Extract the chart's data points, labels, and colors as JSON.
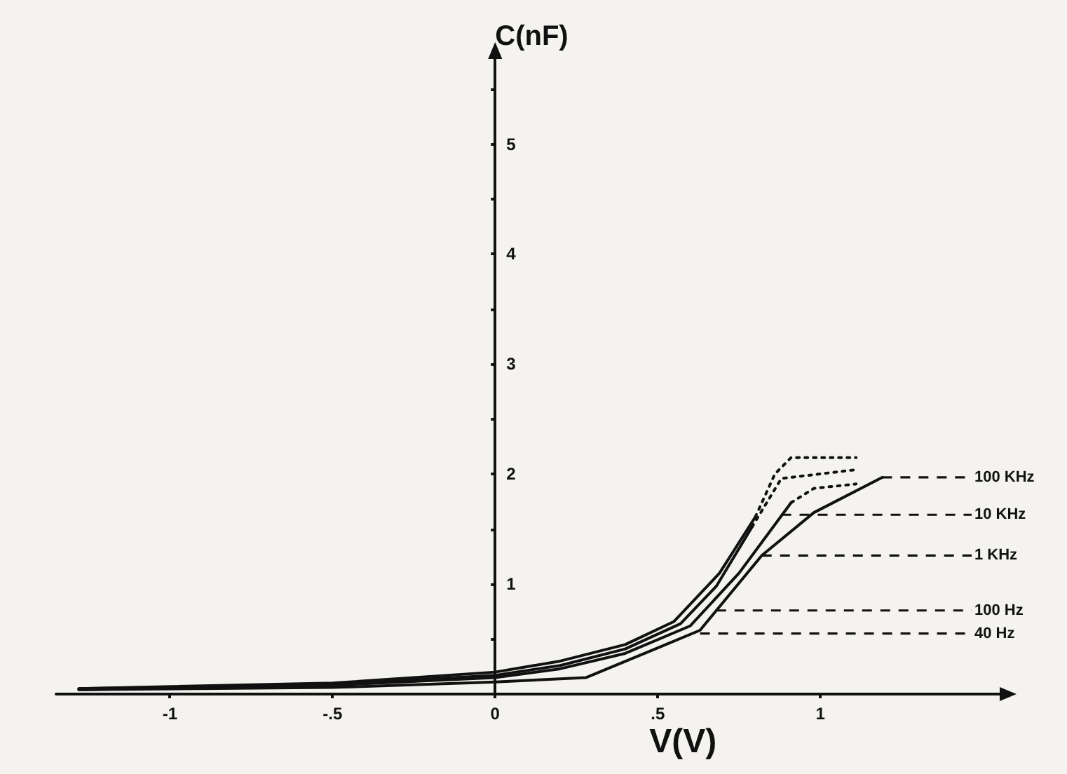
{
  "chart_data": {
    "type": "line",
    "xlabel": "V(V)",
    "ylabel": "C(nF)",
    "xlim": [
      -1.35,
      1.56
    ],
    "ylim": [
      0,
      5.8
    ],
    "xticks": [
      {
        "value": -1,
        "label": "-1"
      },
      {
        "value": -0.5,
        "label": "-.5"
      },
      0,
      {
        "value": 0.5,
        "label": ".5"
      },
      1
    ],
    "yticks": [
      {
        "value": 0.5,
        "label": null
      },
      1,
      {
        "value": 1.5,
        "label": null
      },
      2,
      {
        "value": 2.5,
        "label": null
      },
      3,
      {
        "value": 3.5,
        "label": null
      },
      4,
      {
        "value": 4.5,
        "label": null
      },
      5,
      {
        "value": 5.5,
        "label": null
      }
    ],
    "grid": false,
    "marker": "none",
    "series": [
      {
        "color": "#111111",
        "line_style": "solid",
        "x": [
          -1.28,
          -0.5,
          0,
          0.2,
          0.4,
          0.55,
          0.69,
          0.8
        ],
        "values": [
          0.05,
          0.1,
          0.2,
          0.3,
          0.45,
          0.66,
          1.1,
          1.61
        ]
      },
      {
        "color": "#111111",
        "line_style": "dotted",
        "x": [
          0.8,
          0.86,
          0.91,
          1.11
        ],
        "values": [
          1.61,
          2.0,
          2.15,
          2.15
        ]
      },
      {
        "color": "#111111",
        "line_style": "solid",
        "x": [
          -1.28,
          -0.5,
          0,
          0.2,
          0.4,
          0.57,
          0.68,
          0.79
        ],
        "values": [
          0.05,
          0.09,
          0.17,
          0.26,
          0.41,
          0.64,
          0.98,
          1.52
        ]
      },
      {
        "color": "#111111",
        "line_style": "dotted",
        "x": [
          0.79,
          0.88,
          1.11
        ],
        "values": [
          1.52,
          1.96,
          2.04
        ]
      },
      {
        "color": "#111111",
        "line_style": "solid",
        "x": [
          -1.28,
          -0.5,
          0,
          0.2,
          0.4,
          0.6,
          0.75,
          0.91
        ],
        "values": [
          0.04,
          0.08,
          0.15,
          0.23,
          0.37,
          0.62,
          1.1,
          1.74
        ]
      },
      {
        "color": "#111111",
        "line_style": "dotted",
        "x": [
          0.91,
          0.98,
          1.11
        ],
        "values": [
          1.74,
          1.87,
          1.91
        ]
      },
      {
        "color": "#111111",
        "line_style": "solid",
        "x": [
          -1.28,
          -0.5,
          0,
          0.28,
          0.5,
          0.63,
          0.82,
          0.98,
          1.19
        ],
        "values": [
          0.04,
          0.06,
          0.11,
          0.15,
          0.42,
          0.58,
          1.26,
          1.65,
          1.97
        ]
      }
    ],
    "annotations": [
      {
        "text": "100 KHz",
        "x": 1.19,
        "y": 1.97
      },
      {
        "text": "10 KHz",
        "x": 0.88,
        "y": 1.63
      },
      {
        "text": "1 KHz",
        "x": 0.82,
        "y": 1.26
      },
      {
        "text": "100 Hz",
        "x": 0.68,
        "y": 0.76
      },
      {
        "text": "40 Hz",
        "x": 0.63,
        "y": 0.55
      }
    ]
  }
}
